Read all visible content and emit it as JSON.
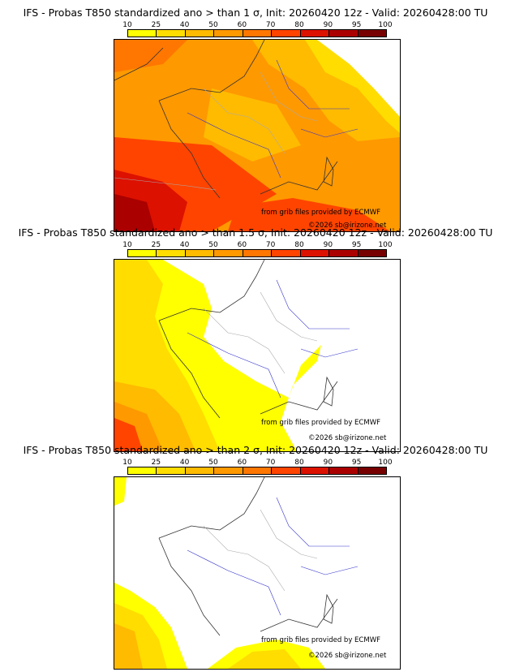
{
  "legend": {
    "ticks": [
      "10",
      "25",
      "40",
      "50",
      "60",
      "70",
      "80",
      "90",
      "95",
      "100"
    ],
    "colors": [
      "#ffff00",
      "#ffdd00",
      "#ffbb00",
      "#ff9900",
      "#ff7700",
      "#ff4400",
      "#dd1100",
      "#aa0000",
      "#770000"
    ]
  },
  "credits": {
    "source": "from grib files provided by ECMWF",
    "copyright": "©2026 sb@irizone.net"
  },
  "panels": [
    {
      "title": "IFS - Probas T850  standardized ano > than 1 σ, Init: 20260420 12z - Valid: 20260428:00 TU"
    },
    {
      "title": "IFS - Probas T850  standardized ano > than 1.5 σ, Init: 20260420 12z - Valid: 20260428:00 TU"
    },
    {
      "title": "IFS - Probas T850  standardized ano > than 2 σ, Init: 20260420 12z - Valid: 20260428:00 TU"
    }
  ]
}
